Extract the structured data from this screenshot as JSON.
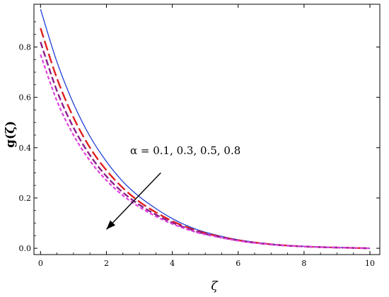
{
  "chart_data": {
    "type": "line",
    "xlabel": "ζ",
    "ylabel": "g(ζ)",
    "xlim": [
      -0.2,
      10.3
    ],
    "ylim": [
      -0.025,
      0.97
    ],
    "xticks": [
      0,
      2,
      4,
      6,
      8,
      10
    ],
    "yticks": [
      0.0,
      0.2,
      0.4,
      0.6,
      0.8
    ],
    "ytick_labels": [
      "0.0",
      "0.2",
      "0.4",
      "0.6",
      "0.8"
    ],
    "xtick_labels": [
      "0",
      "2",
      "4",
      "6",
      "8",
      "10"
    ],
    "grid": false,
    "annotation": {
      "text": "α = 0.1, 0.3, 0.5, 0.8",
      "arrow_from": [
        3.65,
        0.3
      ],
      "arrow_to": [
        2.0,
        0.075
      ]
    },
    "series": [
      {
        "color": "#1f3fd6",
        "dash": "solid",
        "x": [
          0,
          0.5,
          1,
          1.5,
          2,
          2.5,
          3,
          3.5,
          4,
          4.5,
          5,
          6,
          7,
          8,
          9,
          10
        ],
        "y": [
          0.95,
          0.74,
          0.575,
          0.445,
          0.345,
          0.265,
          0.205,
          0.158,
          0.118,
          0.087,
          0.064,
          0.034,
          0.017,
          0.008,
          0.003,
          0.0
        ]
      },
      {
        "color": "#e02020",
        "dash": "long",
        "x": [
          0,
          0.5,
          1,
          1.5,
          2,
          2.5,
          3,
          3.5,
          4,
          4.5,
          5,
          6,
          7,
          8,
          9,
          10
        ],
        "y": [
          0.875,
          0.675,
          0.52,
          0.4,
          0.31,
          0.24,
          0.185,
          0.143,
          0.108,
          0.081,
          0.06,
          0.032,
          0.016,
          0.007,
          0.003,
          0.0
        ]
      },
      {
        "color": "#8b1f8b",
        "dash": "medium",
        "x": [
          0,
          0.5,
          1,
          1.5,
          2,
          2.5,
          3,
          3.5,
          4,
          4.5,
          5,
          6,
          7,
          8,
          9,
          10
        ],
        "y": [
          0.82,
          0.625,
          0.48,
          0.37,
          0.286,
          0.222,
          0.173,
          0.134,
          0.102,
          0.077,
          0.057,
          0.031,
          0.015,
          0.007,
          0.003,
          0.0
        ]
      },
      {
        "color": "#e040e0",
        "dash": "short",
        "x": [
          0,
          0.5,
          1,
          1.5,
          2,
          2.5,
          3,
          3.5,
          4,
          4.5,
          5,
          6,
          7,
          8,
          9,
          10
        ],
        "y": [
          0.77,
          0.585,
          0.45,
          0.348,
          0.27,
          0.21,
          0.164,
          0.127,
          0.097,
          0.073,
          0.055,
          0.03,
          0.015,
          0.007,
          0.003,
          0.0
        ]
      }
    ]
  }
}
